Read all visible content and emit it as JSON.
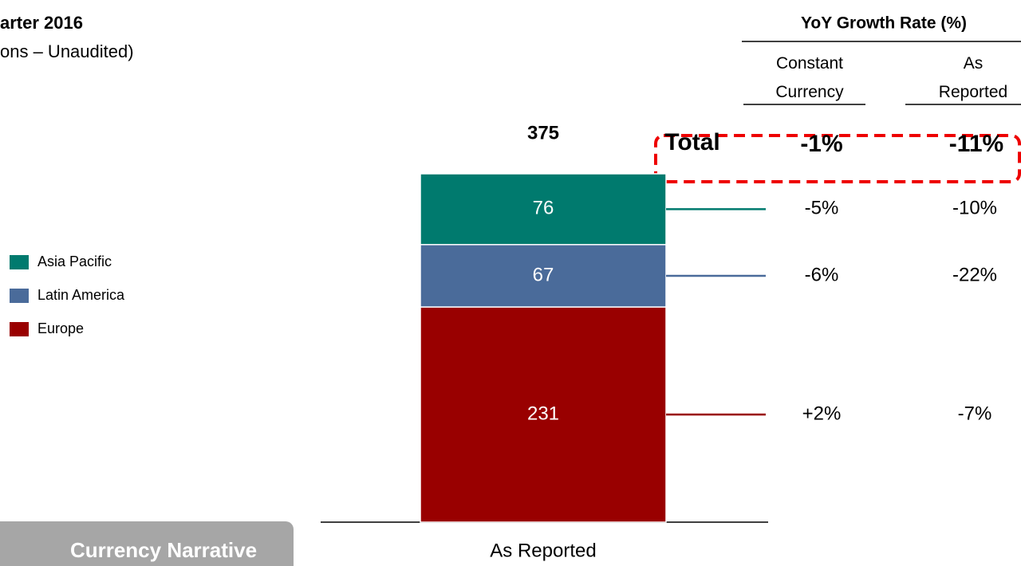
{
  "chart_data": {
    "type": "stacked_bar",
    "title": "arter 2016",
    "subtitle": "ons – Unaudited)",
    "categories": [
      "As Reported"
    ],
    "series": [
      {
        "name": "Europe",
        "color": "#990000",
        "values": [
          231
        ]
      },
      {
        "name": "Latin America",
        "color": "#4a6b9a",
        "values": [
          67
        ]
      },
      {
        "name": "Asia Pacific",
        "color": "#007a6e",
        "values": [
          76
        ]
      }
    ],
    "total": 375,
    "table": {
      "title": "YoY Growth Rate (%)",
      "columns": [
        "Constant Currency",
        "As Reported"
      ],
      "total": {
        "label": "Total",
        "values": [
          "-1%",
          "-11%"
        ]
      },
      "rows": [
        [
          "+2%",
          "-7%"
        ],
        [
          "-6%",
          "-22%"
        ],
        [
          "-5%",
          "-10%"
        ]
      ]
    },
    "button": "Currency Narrative"
  }
}
